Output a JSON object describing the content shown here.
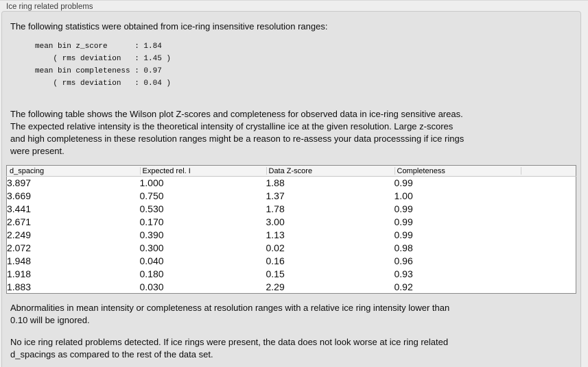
{
  "group": {
    "title": "Ice ring related problems"
  },
  "intro": "The following statistics were obtained from ice-ring insensitive resolution ranges:",
  "stats": {
    "lines": [
      "mean bin z_score      : 1.84",
      "    ( rms deviation   : 1.45 )",
      "mean bin completeness : 0.97",
      "    ( rms deviation   : 0.04 )"
    ]
  },
  "table_description": {
    "lines": [
      "The following table shows the Wilson plot Z-scores and completeness for observed data in ice-ring sensitive areas.",
      "The expected relative intensity is the theoretical intensity of crystalline ice at the given resolution. Large z-scores",
      "and high completeness in these resolution ranges might be a reason to re-assess your data processsing if ice rings",
      "were present."
    ]
  },
  "table": {
    "columns": [
      "d_spacing",
      "Expected rel. I",
      "Data Z-score",
      "Completeness",
      ""
    ],
    "rows": [
      {
        "d_spacing": "3.897",
        "expected_rel_i": "1.000",
        "data_z_score": "1.88",
        "completeness": "0.99"
      },
      {
        "d_spacing": "3.669",
        "expected_rel_i": "0.750",
        "data_z_score": "1.37",
        "completeness": "1.00"
      },
      {
        "d_spacing": "3.441",
        "expected_rel_i": "0.530",
        "data_z_score": "1.78",
        "completeness": "0.99"
      },
      {
        "d_spacing": "2.671",
        "expected_rel_i": "0.170",
        "data_z_score": "3.00",
        "completeness": "0.99"
      },
      {
        "d_spacing": "2.249",
        "expected_rel_i": "0.390",
        "data_z_score": "1.13",
        "completeness": "0.99"
      },
      {
        "d_spacing": "2.072",
        "expected_rel_i": "0.300",
        "data_z_score": "0.02",
        "completeness": "0.98"
      },
      {
        "d_spacing": "1.948",
        "expected_rel_i": "0.040",
        "data_z_score": "0.16",
        "completeness": "0.96"
      },
      {
        "d_spacing": "1.918",
        "expected_rel_i": "0.180",
        "data_z_score": "0.15",
        "completeness": "0.93"
      },
      {
        "d_spacing": "1.883",
        "expected_rel_i": "0.030",
        "data_z_score": "2.29",
        "completeness": "0.92"
      }
    ]
  },
  "ignore_note": {
    "lines": [
      "Abnormalities in mean intensity or completeness at resolution ranges with a relative ice ring intensity lower than",
      "0.10 will be ignored."
    ]
  },
  "conclusion": {
    "lines": [
      "No ice ring related problems detected. If ice rings were present, the data does not look worse at ice ring related",
      "d_spacings as compared to the rest of the data set."
    ]
  }
}
